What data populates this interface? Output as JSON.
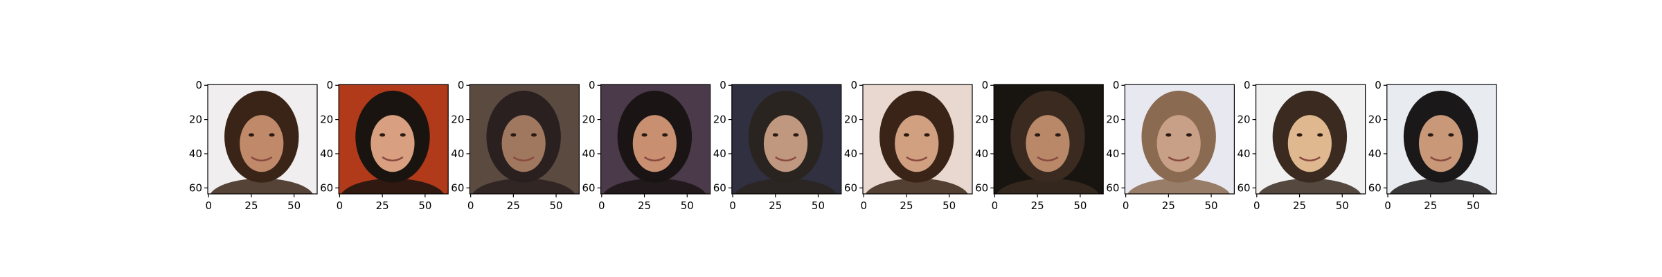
{
  "chart_data": [
    {
      "type": "image",
      "xlim": [
        -0.5,
        63.5
      ],
      "ylim": [
        63.5,
        -0.5
      ],
      "xticks": [
        0,
        25,
        50
      ],
      "yticks": [
        0,
        20,
        40,
        60
      ],
      "palette": [
        "#f0eeee",
        "#3a2418",
        "#c08a6a"
      ]
    },
    {
      "type": "image",
      "xlim": [
        -0.5,
        63.5
      ],
      "ylim": [
        63.5,
        -0.5
      ],
      "xticks": [
        0,
        25,
        50
      ],
      "yticks": [
        0,
        20,
        40,
        60
      ],
      "palette": [
        "#b03a1a",
        "#1a1410",
        "#d8a080"
      ]
    },
    {
      "type": "image",
      "xlim": [
        -0.5,
        63.5
      ],
      "ylim": [
        63.5,
        -0.5
      ],
      "xticks": [
        0,
        25,
        50
      ],
      "yticks": [
        0,
        20,
        40,
        60
      ],
      "palette": [
        "#5a4a40",
        "#2a2020",
        "#a07860"
      ]
    },
    {
      "type": "image",
      "xlim": [
        -0.5,
        63.5
      ],
      "ylim": [
        63.5,
        -0.5
      ],
      "xticks": [
        0,
        25,
        50
      ],
      "yticks": [
        0,
        20,
        40,
        60
      ],
      "palette": [
        "#4a3a4a",
        "#1a1414",
        "#c89070"
      ]
    },
    {
      "type": "image",
      "xlim": [
        -0.5,
        63.5
      ],
      "ylim": [
        63.5,
        -0.5
      ],
      "xticks": [
        0,
        25,
        50
      ],
      "yticks": [
        0,
        20,
        40,
        60
      ],
      "palette": [
        "#303040",
        "#2a2420",
        "#c09880"
      ]
    },
    {
      "type": "image",
      "xlim": [
        -0.5,
        63.5
      ],
      "ylim": [
        63.5,
        -0.5
      ],
      "xticks": [
        0,
        25,
        50
      ],
      "yticks": [
        0,
        20,
        40,
        60
      ],
      "palette": [
        "#e8d8d0",
        "#3a2418",
        "#d0a080"
      ]
    },
    {
      "type": "image",
      "xlim": [
        -0.5,
        63.5
      ],
      "ylim": [
        63.5,
        -0.5
      ],
      "xticks": [
        0,
        25,
        50
      ],
      "yticks": [
        0,
        20,
        40,
        60
      ],
      "palette": [
        "#181410",
        "#3a2a20",
        "#b88868"
      ]
    },
    {
      "type": "image",
      "xlim": [
        -0.5,
        63.5
      ],
      "ylim": [
        63.5,
        -0.5
      ],
      "xticks": [
        0,
        25,
        50
      ],
      "yticks": [
        0,
        20,
        40,
        60
      ],
      "palette": [
        "#e8e8f0",
        "#8a6a50",
        "#c8a088"
      ]
    },
    {
      "type": "image",
      "xlim": [
        -0.5,
        63.5
      ],
      "ylim": [
        63.5,
        -0.5
      ],
      "xticks": [
        0,
        25,
        50
      ],
      "yticks": [
        0,
        20,
        40,
        60
      ],
      "palette": [
        "#f0f0f0",
        "#3a2a20",
        "#e0b890"
      ]
    },
    {
      "type": "image",
      "xlim": [
        -0.5,
        63.5
      ],
      "ylim": [
        63.5,
        -0.5
      ],
      "xticks": [
        0,
        25,
        50
      ],
      "yticks": [
        0,
        20,
        40,
        60
      ],
      "palette": [
        "#e8ecf0",
        "#1a1818",
        "#c89878"
      ]
    }
  ]
}
